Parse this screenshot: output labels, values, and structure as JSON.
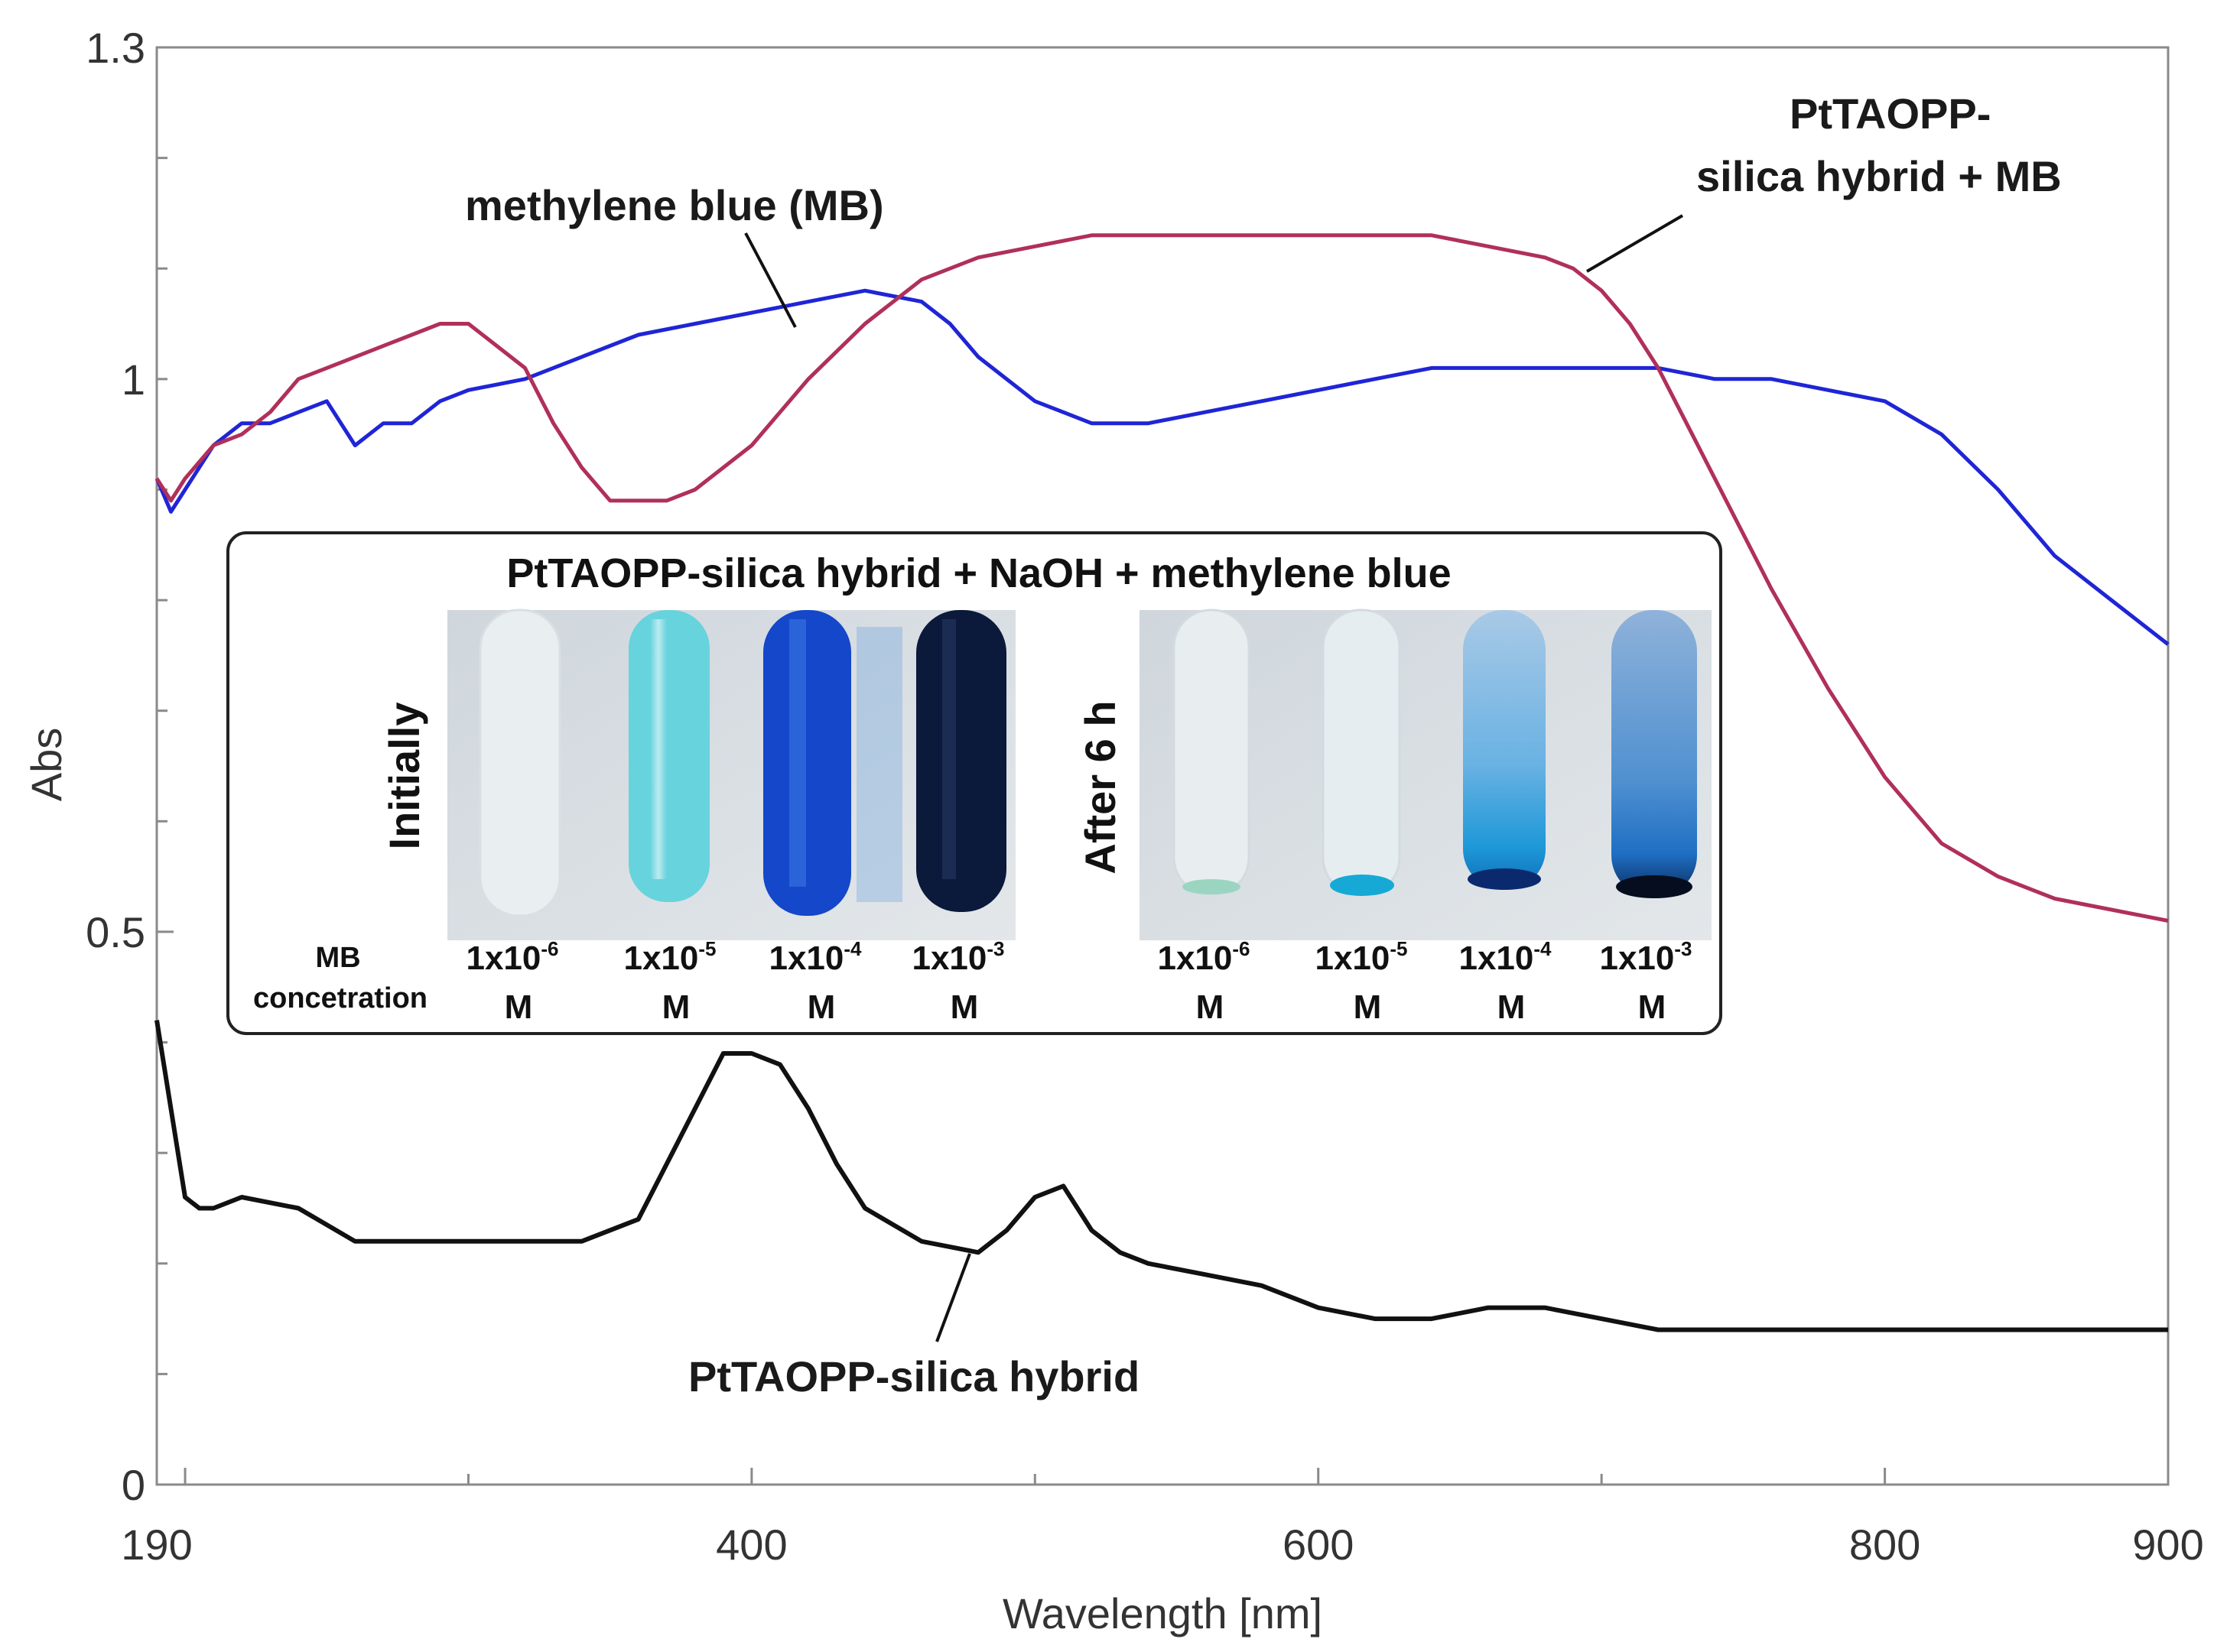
{
  "chart_data": {
    "type": "line",
    "xlabel": "Wavelength [nm]",
    "ylabel": "Abs",
    "xlim": [
      190,
      900
    ],
    "ylim": [
      0,
      1.3
    ],
    "x_ticks": [
      190,
      400,
      600,
      800,
      900
    ],
    "y_ticks": [
      0,
      0.5,
      1,
      1.3
    ],
    "x_tick_labels": [
      "190",
      "400",
      "600",
      "800",
      "900"
    ],
    "y_tick_labels": [
      "0",
      "0.5",
      "1",
      "1.3"
    ],
    "series": [
      {
        "name": "methylene blue (MB)",
        "color": "#1f25d6",
        "x": [
          190,
          195,
          200,
          210,
          220,
          230,
          240,
          250,
          260,
          270,
          280,
          290,
          300,
          320,
          340,
          360,
          380,
          400,
          420,
          440,
          460,
          470,
          480,
          500,
          520,
          540,
          560,
          580,
          600,
          620,
          640,
          660,
          680,
          700,
          720,
          740,
          760,
          780,
          800,
          820,
          840,
          860,
          880,
          900
        ],
        "y": [
          0.91,
          0.88,
          0.9,
          0.94,
          0.96,
          0.96,
          0.97,
          0.98,
          0.94,
          0.96,
          0.96,
          0.98,
          0.99,
          1.0,
          1.02,
          1.04,
          1.05,
          1.06,
          1.07,
          1.08,
          1.07,
          1.05,
          1.02,
          0.98,
          0.96,
          0.96,
          0.97,
          0.98,
          0.99,
          1.0,
          1.01,
          1.01,
          1.01,
          1.01,
          1.01,
          1.0,
          1.0,
          0.99,
          0.98,
          0.95,
          0.9,
          0.84,
          0.8,
          0.76
        ]
      },
      {
        "name": "PtTAOPP-silica hybrid + MB",
        "color": "#b0305a",
        "x": [
          190,
          195,
          200,
          210,
          220,
          230,
          240,
          250,
          260,
          280,
          290,
          300,
          320,
          330,
          340,
          350,
          360,
          370,
          380,
          400,
          420,
          440,
          460,
          480,
          500,
          520,
          540,
          560,
          580,
          600,
          620,
          640,
          660,
          680,
          690,
          700,
          710,
          720,
          730,
          740,
          760,
          780,
          800,
          820,
          840,
          860,
          880,
          900
        ],
        "y": [
          0.91,
          0.89,
          0.91,
          0.94,
          0.95,
          0.97,
          1.0,
          1.01,
          1.02,
          1.04,
          1.05,
          1.05,
          1.01,
          0.96,
          0.92,
          0.89,
          0.89,
          0.89,
          0.9,
          0.94,
          1.0,
          1.05,
          1.09,
          1.11,
          1.12,
          1.13,
          1.13,
          1.13,
          1.13,
          1.13,
          1.13,
          1.13,
          1.12,
          1.11,
          1.1,
          1.08,
          1.05,
          1.01,
          0.96,
          0.91,
          0.81,
          0.72,
          0.64,
          0.58,
          0.55,
          0.53,
          0.52,
          0.51
        ]
      },
      {
        "name": "PtTAOPP-silica hybrid",
        "color": "#111111",
        "x": [
          190,
          195,
          200,
          205,
          210,
          220,
          240,
          260,
          280,
          300,
          320,
          340,
          360,
          380,
          390,
          400,
          410,
          420,
          430,
          440,
          460,
          480,
          490,
          500,
          510,
          520,
          530,
          540,
          560,
          580,
          600,
          620,
          640,
          660,
          680,
          700,
          720,
          740,
          760,
          780,
          800,
          820,
          840,
          860,
          880,
          900
        ],
        "y": [
          0.42,
          0.34,
          0.26,
          0.25,
          0.25,
          0.26,
          0.25,
          0.22,
          0.22,
          0.22,
          0.22,
          0.22,
          0.24,
          0.34,
          0.39,
          0.39,
          0.38,
          0.34,
          0.29,
          0.25,
          0.22,
          0.21,
          0.23,
          0.26,
          0.27,
          0.23,
          0.21,
          0.2,
          0.19,
          0.18,
          0.16,
          0.15,
          0.15,
          0.16,
          0.16,
          0.15,
          0.14,
          0.14,
          0.14,
          0.14,
          0.14,
          0.14,
          0.14,
          0.14,
          0.14,
          0.14
        ]
      }
    ],
    "annotations": [
      {
        "text": "methylene blue (MB)",
        "series": "methylene blue (MB)"
      },
      {
        "text_lines": [
          "PtTAOPP-",
          "silica hybrid + MB"
        ],
        "series": "PtTAOPP-silica hybrid + MB"
      },
      {
        "text": "PtTAOPP-silica hybrid",
        "series": "PtTAOPP-silica hybrid"
      }
    ]
  },
  "inset": {
    "title": "PtTAOPP-silica hybrid + NaOH + methylene blue",
    "left_panel_label": "Initially",
    "right_panel_label": "After 6 h",
    "concentration_label_lines": [
      "MB",
      "concetration"
    ],
    "concentrations": [
      {
        "base": "1x10",
        "exp": "-6",
        "unit": "M"
      },
      {
        "base": "1x10",
        "exp": "-5",
        "unit": "M"
      },
      {
        "base": "1x10",
        "exp": "-4",
        "unit": "M"
      },
      {
        "base": "1x10",
        "exp": "-3",
        "unit": "M"
      }
    ]
  }
}
